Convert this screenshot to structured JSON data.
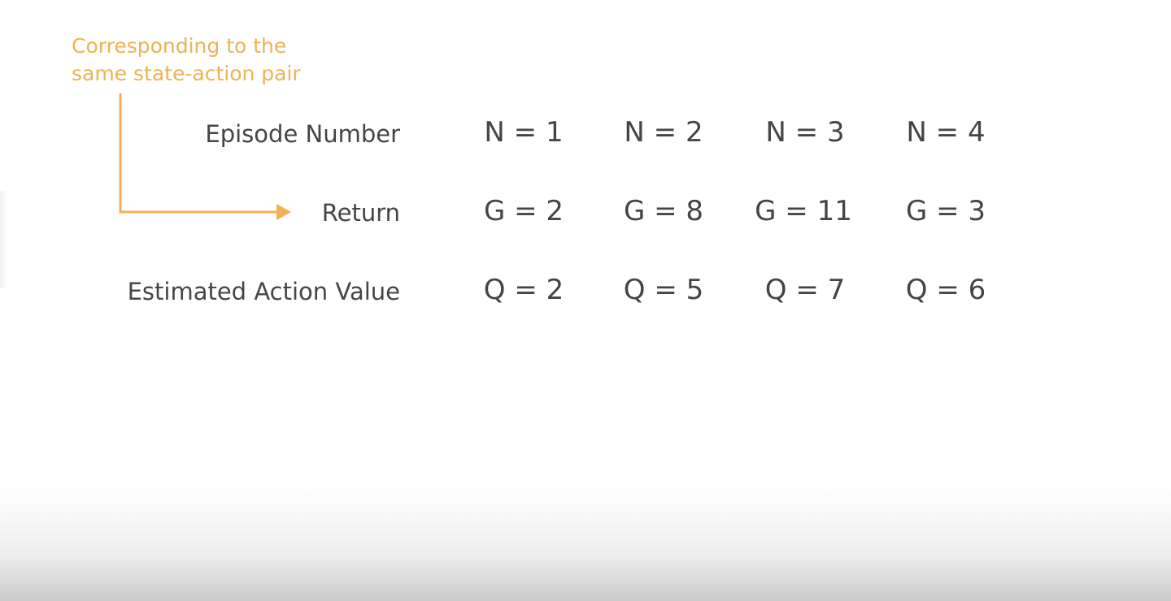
{
  "annotation": {
    "line1": "Corresponding to the",
    "line2": "same state-action pair",
    "color": "#f0b255"
  },
  "rows": [
    {
      "label": "Episode Number",
      "cells": [
        "N = 1",
        "N = 2",
        "N = 3",
        "N = 4"
      ]
    },
    {
      "label": "Return",
      "cells": [
        "G = 2",
        "G = 8",
        "G = 11",
        "G = 3"
      ]
    },
    {
      "label": "Estimated Action Value",
      "cells": [
        "Q = 2",
        "Q = 5",
        "Q = 7",
        "Q = 6"
      ]
    }
  ],
  "text_color": "#454548"
}
